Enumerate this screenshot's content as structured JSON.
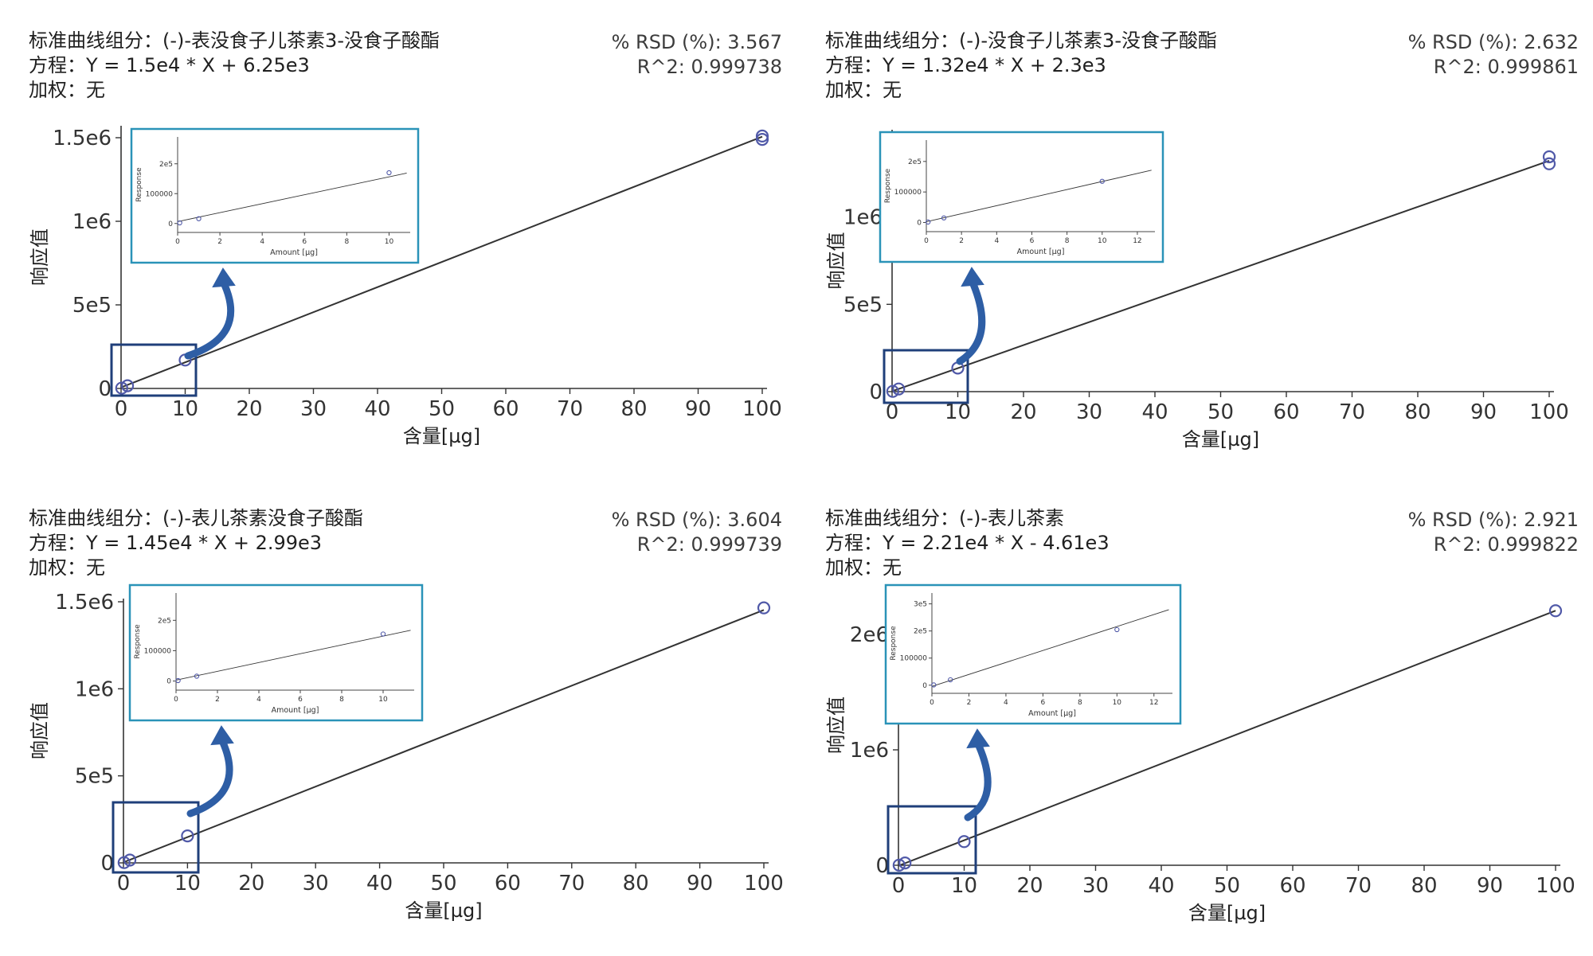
{
  "labels": {
    "component_prefix": "标准曲线组分：",
    "equation_prefix": "方程：",
    "weight_prefix": "加权：",
    "rsd_prefix": "% RSD (%): ",
    "r2_prefix": "R^2: ",
    "ylabel": "响应值",
    "xlabel": "含量[µg]",
    "inset_ylabel": "Response",
    "inset_xlabel": "Amount [µg]"
  },
  "colors": {
    "frame": "#1f3f7a",
    "inset_border": "#2a93b8",
    "arrow": "#2e5ea5",
    "marker": "#5059a8",
    "line": "#333333"
  },
  "chart_data": [
    {
      "type": "scatter",
      "component": "(-)-表没食子儿茶素3-没食子酸酯",
      "equation": "Y = 1.5e4 * X + 6.25e3",
      "weighting": "无",
      "rsd": "3.567",
      "r2": "0.999738",
      "slope": 15000,
      "intercept": 6250,
      "xlim": [
        0,
        100
      ],
      "ylim": [
        0,
        1500000
      ],
      "xticks": [
        0,
        10,
        20,
        30,
        40,
        50,
        60,
        70,
        80,
        90,
        100
      ],
      "yticks": [
        {
          "v": 0,
          "t": "0"
        },
        {
          "v": 500000,
          "t": "5e5"
        },
        {
          "v": 1000000,
          "t": "1e6"
        },
        {
          "v": 1500000,
          "t": "1.5e6"
        }
      ],
      "points": [
        [
          0.1,
          2000
        ],
        [
          1,
          16000
        ],
        [
          10,
          170000
        ],
        [
          100,
          1490000
        ],
        [
          100,
          1510000
        ]
      ],
      "inset": {
        "xlim": [
          0,
          11
        ],
        "ylim": [
          -30000,
          290000
        ],
        "xticks": [
          {
            "v": 0,
            "t": "0"
          },
          {
            "v": 2,
            "t": "2"
          },
          {
            "v": 4,
            "t": "4"
          },
          {
            "v": 6,
            "t": "6"
          },
          {
            "v": 8,
            "t": "8"
          },
          {
            "v": 10,
            "t": "10"
          }
        ],
        "yticks": [
          {
            "v": 0,
            "t": "0"
          },
          {
            "v": 100000,
            "t": "100000"
          },
          {
            "v": 200000,
            "t": "2e5"
          }
        ]
      }
    },
    {
      "type": "scatter",
      "component": "(-)-没食子儿茶素3-没食子酸酯",
      "equation": "Y = 1.32e4 * X + 2.3e3",
      "weighting": "无",
      "rsd": "2.632",
      "r2": "0.999861",
      "slope": 13200,
      "intercept": 2300,
      "xlim": [
        0,
        100
      ],
      "ylim": [
        0,
        1500000
      ],
      "xticks": [
        0,
        10,
        20,
        30,
        40,
        50,
        60,
        70,
        80,
        90,
        100
      ],
      "yticks": [
        {
          "v": 0,
          "t": "0"
        },
        {
          "v": 500000,
          "t": "5e5"
        },
        {
          "v": 1000000,
          "t": "1e6"
        }
      ],
      "points": [
        [
          0.1,
          1500
        ],
        [
          1,
          15000
        ],
        [
          10,
          135000
        ],
        [
          100,
          1305000
        ],
        [
          100,
          1345000
        ]
      ],
      "inset": {
        "xlim": [
          0,
          13
        ],
        "ylim": [
          -30000,
          270000
        ],
        "xticks": [
          {
            "v": 0,
            "t": "0"
          },
          {
            "v": 2,
            "t": "2"
          },
          {
            "v": 4,
            "t": "4"
          },
          {
            "v": 6,
            "t": "6"
          },
          {
            "v": 8,
            "t": "8"
          },
          {
            "v": 10,
            "t": "10"
          },
          {
            "v": 12,
            "t": "12"
          }
        ],
        "yticks": [
          {
            "v": 0,
            "t": "0"
          },
          {
            "v": 100000,
            "t": "100000"
          },
          {
            "v": 200000,
            "t": "2e5"
          }
        ]
      }
    },
    {
      "type": "scatter",
      "component": "(-)-表儿茶素没食子酸酯",
      "equation": "Y = 1.45e4 * X + 2.99e3",
      "weighting": "无",
      "rsd": "3.604",
      "r2": "0.999739",
      "slope": 14500,
      "intercept": 2990,
      "xlim": [
        0,
        100
      ],
      "ylim": [
        0,
        1500000
      ],
      "xticks": [
        0,
        10,
        20,
        30,
        40,
        50,
        60,
        70,
        80,
        90,
        100
      ],
      "yticks": [
        {
          "v": 0,
          "t": "0"
        },
        {
          "v": 500000,
          "t": "5e5"
        },
        {
          "v": 1000000,
          "t": "1e6"
        },
        {
          "v": 1500000,
          "t": "1.5e6"
        }
      ],
      "points": [
        [
          0.1,
          1500
        ],
        [
          1,
          16000
        ],
        [
          10,
          155000
        ],
        [
          100,
          1465000
        ]
      ],
      "inset": {
        "xlim": [
          0,
          11.5
        ],
        "ylim": [
          -30000,
          290000
        ],
        "xticks": [
          {
            "v": 0,
            "t": "0"
          },
          {
            "v": 2,
            "t": "2"
          },
          {
            "v": 4,
            "t": "4"
          },
          {
            "v": 6,
            "t": "6"
          },
          {
            "v": 8,
            "t": "8"
          },
          {
            "v": 10,
            "t": "10"
          }
        ],
        "yticks": [
          {
            "v": 0,
            "t": "0"
          },
          {
            "v": 100000,
            "t": "100000"
          },
          {
            "v": 200000,
            "t": "2e5"
          }
        ]
      }
    },
    {
      "type": "scatter",
      "component": "(-)-表儿茶素",
      "equation": "Y = 2.21e4 * X - 4.61e3",
      "weighting": "无",
      "rsd": "2.921",
      "r2": "0.999822",
      "slope": 22100,
      "intercept": -4610,
      "xlim": [
        0,
        100
      ],
      "ylim": [
        0,
        2300000
      ],
      "xticks": [
        0,
        10,
        20,
        30,
        40,
        50,
        60,
        70,
        80,
        90,
        100
      ],
      "yticks": [
        {
          "v": 0,
          "t": "0"
        },
        {
          "v": 1000000,
          "t": "1e6"
        },
        {
          "v": 2000000,
          "t": "2e6"
        }
      ],
      "points": [
        [
          0.1,
          1000
        ],
        [
          1,
          20000
        ],
        [
          10,
          205000
        ],
        [
          100,
          2205000
        ]
      ],
      "inset": {
        "xlim": [
          0,
          13
        ],
        "ylim": [
          -30000,
          340000
        ],
        "xticks": [
          {
            "v": 0,
            "t": "0"
          },
          {
            "v": 2,
            "t": "2"
          },
          {
            "v": 4,
            "t": "4"
          },
          {
            "v": 6,
            "t": "6"
          },
          {
            "v": 8,
            "t": "8"
          },
          {
            "v": 10,
            "t": "10"
          },
          {
            "v": 12,
            "t": "12"
          }
        ],
        "yticks": [
          {
            "v": 0,
            "t": "0"
          },
          {
            "v": 100000,
            "t": "100000"
          },
          {
            "v": 200000,
            "t": "2e5"
          },
          {
            "v": 300000,
            "t": "3e5"
          }
        ]
      }
    }
  ]
}
